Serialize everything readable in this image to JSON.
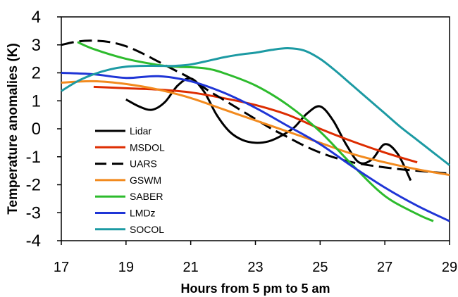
{
  "chart_data": {
    "type": "line",
    "title": "",
    "xlabel": "Hours from 5 pm to 5 am",
    "ylabel": "Temperature anomalies (K)",
    "xlim": [
      17,
      29
    ],
    "ylim": [
      -4,
      4
    ],
    "xticks": [
      17,
      19,
      21,
      23,
      25,
      27,
      29
    ],
    "yticks": [
      4,
      3,
      2,
      1,
      0,
      -1,
      -2,
      -3,
      -4
    ],
    "grid": false,
    "legend_position": "bottom-left",
    "series": [
      {
        "name": "Lidar",
        "color": "#000000",
        "dash": "solid",
        "x": [
          19.0,
          19.4,
          19.8,
          20.2,
          20.6,
          21.0,
          21.4,
          21.8,
          22.2,
          22.6,
          23.0,
          23.4,
          23.8,
          24.2,
          24.6,
          25.0,
          25.4,
          25.8,
          26.2,
          26.6,
          27.0,
          27.4,
          27.8
        ],
        "y": [
          1.05,
          0.8,
          0.68,
          0.95,
          1.55,
          1.8,
          1.35,
          0.5,
          -0.1,
          -0.4,
          -0.5,
          -0.45,
          -0.25,
          0.05,
          0.55,
          0.8,
          0.3,
          -0.55,
          -1.2,
          -1.1,
          -0.55,
          -0.9,
          -1.85
        ]
      },
      {
        "name": "MSDOL",
        "color": "#dd2c00",
        "dash": "solid",
        "x": [
          18.0,
          19.0,
          20.0,
          21.0,
          22.0,
          23.0,
          24.0,
          25.0,
          26.0,
          27.0,
          28.0
        ],
        "y": [
          1.5,
          1.45,
          1.4,
          1.3,
          1.1,
          0.85,
          0.5,
          0.0,
          -0.45,
          -0.85,
          -1.2
        ]
      },
      {
        "name": "UARS",
        "color": "#000000",
        "dash": "dashed",
        "x": [
          17.0,
          17.5,
          18.0,
          18.5,
          19.0,
          19.5,
          20.0,
          20.5,
          21.0,
          21.5,
          22.0,
          22.5,
          23.0,
          23.5,
          24.0,
          24.5,
          25.0,
          25.5,
          26.0,
          26.5,
          27.0,
          27.5,
          28.0,
          28.5,
          29.0
        ],
        "y": [
          3.0,
          3.12,
          3.15,
          3.1,
          2.95,
          2.7,
          2.4,
          2.1,
          1.8,
          1.4,
          1.05,
          0.7,
          0.35,
          0.0,
          -0.3,
          -0.6,
          -0.85,
          -1.05,
          -1.2,
          -1.3,
          -1.38,
          -1.45,
          -1.5,
          -1.55,
          -1.6
        ]
      },
      {
        "name": "GSWM",
        "color": "#f28a1e",
        "dash": "solid",
        "x": [
          17.0,
          18.0,
          19.0,
          20.0,
          21.0,
          22.0,
          23.0,
          24.0,
          25.0,
          26.0,
          27.0,
          28.0,
          29.0
        ],
        "y": [
          1.65,
          1.7,
          1.6,
          1.4,
          1.1,
          0.7,
          0.3,
          -0.1,
          -0.5,
          -0.9,
          -1.2,
          -1.45,
          -1.65
        ]
      },
      {
        "name": "SABER",
        "color": "#2dbb2d",
        "dash": "solid",
        "x": [
          17.5,
          18.0,
          19.0,
          20.0,
          20.5,
          21.0,
          21.5,
          22.0,
          23.0,
          24.0,
          25.0,
          26.0,
          27.0,
          28.0,
          28.5
        ],
        "y": [
          3.1,
          2.85,
          2.5,
          2.28,
          2.22,
          2.2,
          2.15,
          2.0,
          1.55,
          0.85,
          -0.1,
          -1.3,
          -2.4,
          -3.05,
          -3.3
        ]
      },
      {
        "name": "LMDz",
        "color": "#1f35d6",
        "dash": "solid",
        "x": [
          17.0,
          18.0,
          19.0,
          20.0,
          21.0,
          22.0,
          23.0,
          24.0,
          25.0,
          26.0,
          27.0,
          28.0,
          29.0
        ],
        "y": [
          2.0,
          1.95,
          1.82,
          1.88,
          1.7,
          1.3,
          0.75,
          0.1,
          -0.55,
          -1.35,
          -2.1,
          -2.75,
          -3.3
        ]
      },
      {
        "name": "SOCOL",
        "color": "#1c9aa3",
        "dash": "solid",
        "x": [
          17.0,
          17.5,
          18.0,
          18.5,
          19.0,
          19.5,
          20.0,
          20.5,
          21.0,
          21.5,
          22.0,
          22.5,
          23.0,
          23.5,
          24.0,
          24.5,
          25.0,
          25.5,
          26.0,
          26.5,
          27.0,
          27.5,
          28.0,
          28.5,
          29.0
        ],
        "y": [
          1.35,
          1.7,
          1.95,
          2.12,
          2.22,
          2.25,
          2.25,
          2.25,
          2.3,
          2.42,
          2.55,
          2.65,
          2.72,
          2.82,
          2.88,
          2.8,
          2.5,
          2.05,
          1.55,
          1.05,
          0.55,
          0.05,
          -0.4,
          -0.85,
          -1.3
        ]
      }
    ]
  }
}
